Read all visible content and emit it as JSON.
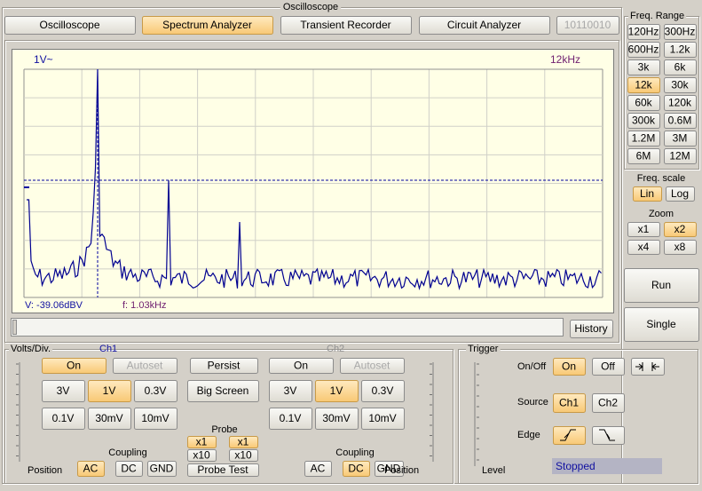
{
  "window_title": "Oscilloscope",
  "tabs": [
    "Oscilloscope",
    "Spectrum Analyzer",
    "Transient Recorder",
    "Circuit Analyzer",
    "10110010"
  ],
  "freq_range": {
    "title": "Freq. Range",
    "buttons": [
      "120Hz",
      "300Hz",
      "600Hz",
      "1.2k",
      "3k",
      "6k",
      "12k",
      "30k",
      "60k",
      "120k",
      "300k",
      "0.6M",
      "1.2M",
      "3M",
      "6M",
      "12M"
    ]
  },
  "freq_scale": {
    "title": "Freq. scale",
    "buttons": [
      "Lin",
      "Log"
    ]
  },
  "zoom": {
    "title": "Zoom",
    "buttons": [
      "x1",
      "x2",
      "x4",
      "x8"
    ]
  },
  "run": "Run",
  "single": "Single",
  "display": {
    "amplitude": "1V~",
    "range": "12kHz",
    "cursor_voltage": "V: -39.06dBV",
    "cursor_frequency": "f: 1.03kHz"
  },
  "history": "History",
  "volts_div": {
    "title": "Volts/Div.",
    "ch1": {
      "label": "Ch1",
      "on": "On",
      "autoset": "Autoset",
      "ranges": [
        "3V",
        "1V",
        "0.3V",
        "0.1V",
        "30mV",
        "10mV"
      ],
      "coupling_title": "Coupling",
      "coupling": [
        "AC",
        "DC",
        "GND"
      ],
      "position": "Position"
    },
    "ch2": {
      "label": "Ch2",
      "on": "On",
      "autoset": "Autoset",
      "ranges": [
        "3V",
        "1V",
        "0.3V",
        "0.1V",
        "30mV",
        "10mV"
      ],
      "coupling_title": "Coupling",
      "coupling": [
        "AC",
        "DC",
        "GND"
      ],
      "position": "Position"
    },
    "persist": "Persist",
    "big_screen": "Big Screen",
    "probe": {
      "title": "Probe",
      "ch1": [
        "x1",
        "x10"
      ],
      "ch2": [
        "x1",
        "x10"
      ],
      "test": "Probe Test"
    }
  },
  "trigger": {
    "title": "Trigger",
    "on_off": "On/Off",
    "on": "On",
    "off": "Off",
    "source": "Source",
    "sources": [
      "Ch1",
      "Ch2"
    ],
    "edge": "Edge",
    "level": "Level",
    "status": "Stopped"
  }
}
